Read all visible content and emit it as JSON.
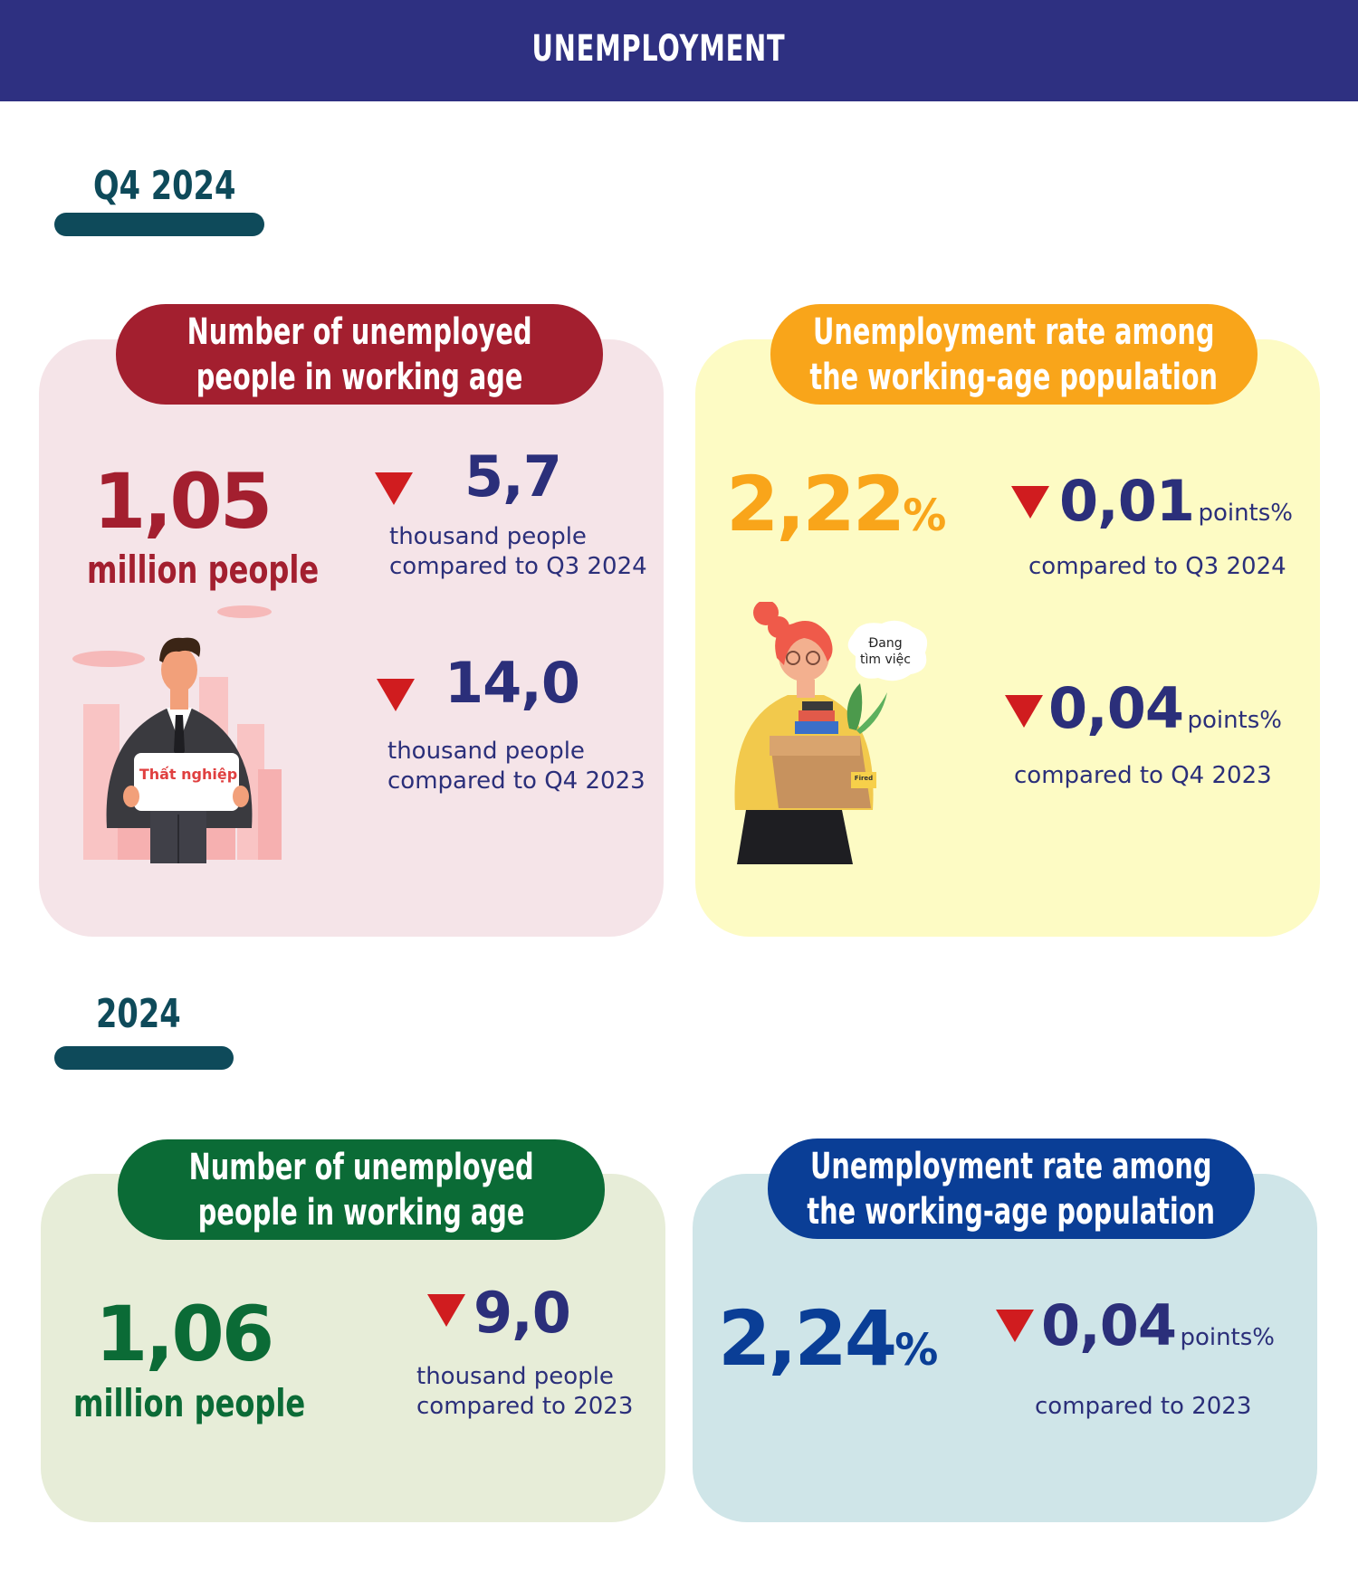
{
  "header": {
    "title": "UNEMPLOYMENT"
  },
  "q4": {
    "label": "Q4 2024",
    "count_card": {
      "title_line1": "Number of unemployed",
      "title_line2": "people in working age",
      "value": "1,05",
      "unit": "million people",
      "change1_value": "5,7",
      "change1_unit": "thousand people",
      "change1_ref": "compared to Q3 2024",
      "change2_value": "14,0",
      "change2_unit": "thousand people",
      "change2_ref": "compared to Q4 2023",
      "sign_text": "Thất nghiệp"
    },
    "rate_card": {
      "title_line1": "Unemployment rate among",
      "title_line2": "the working-age population",
      "value": "2,22",
      "percent": "%",
      "change1_value": "0,01",
      "change1_unit": "points%",
      "change1_ref": "compared to Q3 2024",
      "change2_value": "0,04",
      "change2_unit": "points%",
      "change2_ref": "compared to Q4 2023",
      "bubble_line1": "Đang",
      "bubble_line2": "tìm việc",
      "box_label": "Fired"
    }
  },
  "year": {
    "label": "2024",
    "count_card": {
      "title_line1": "Number of unemployed",
      "title_line2": "people in working age",
      "value": "1,06",
      "unit": "million people",
      "change_value": "9,0",
      "change_unit": "thousand people",
      "change_ref": "compared to 2023"
    },
    "rate_card": {
      "title_line1": "Unemployment rate among",
      "title_line2": "the working-age population",
      "value": "2,24",
      "percent": "%",
      "change_value": "0,04",
      "change_unit": "points%",
      "change_ref": "compared to 2023"
    }
  },
  "colors": {
    "header": "#2e3081",
    "section_label": "#0e4a5a",
    "down_arrow": "#d01c1f",
    "q4_count_card": "#f5e4e8",
    "q4_count_pill": "#a31f2f",
    "q4_rate_card": "#fdfbc4",
    "q4_rate_pill": "#f9a51a",
    "year_count_card": "#e7edd8",
    "year_count_pill": "#0b6b36",
    "year_rate_card": "#cfe5e8",
    "year_rate_pill": "#0a3e96"
  }
}
